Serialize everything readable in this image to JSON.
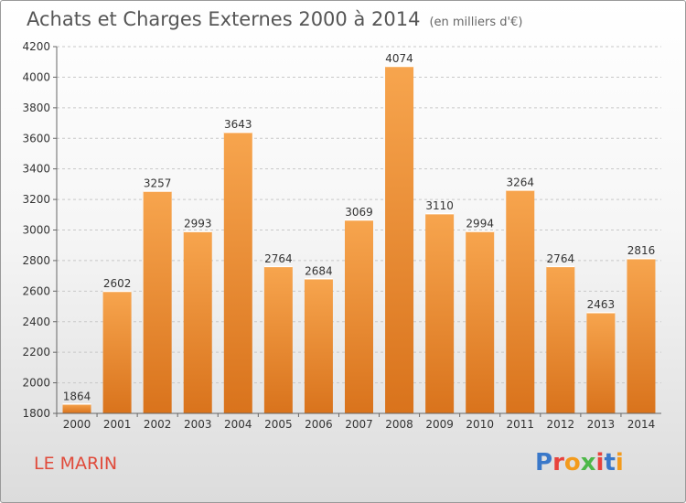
{
  "header": {
    "title": "Achats et Charges Externes 2000 à 2014",
    "unit": "(en milliers d'€)"
  },
  "footer": {
    "commune": "LE MARIN",
    "logo": "Proxiti"
  },
  "colors": {
    "bar_light": "#f7a54e",
    "bar_dark": "#d9731c",
    "logo": [
      "#3a78c9",
      "#e8423c",
      "#f39b1d",
      "#4db848",
      "#e8423c",
      "#3a78c9",
      "#f39b1d"
    ]
  },
  "chart_data": {
    "type": "bar",
    "title": "Achats et Charges Externes 2000 à 2014",
    "subtitle": "(en milliers d'€)",
    "categories": [
      "2000",
      "2001",
      "2002",
      "2003",
      "2004",
      "2005",
      "2006",
      "2007",
      "2008",
      "2009",
      "2010",
      "2011",
      "2012",
      "2013",
      "2014"
    ],
    "values": [
      1864,
      2602,
      3257,
      2993,
      3643,
      2764,
      2684,
      3069,
      4074,
      3110,
      2994,
      3264,
      2764,
      2463,
      2816
    ],
    "ylim": [
      1800,
      4200
    ],
    "yticks": [
      1800,
      2000,
      2200,
      2400,
      2600,
      2800,
      3000,
      3200,
      3400,
      3600,
      3800,
      4000,
      4200
    ],
    "grid": true,
    "data_labels": true
  }
}
